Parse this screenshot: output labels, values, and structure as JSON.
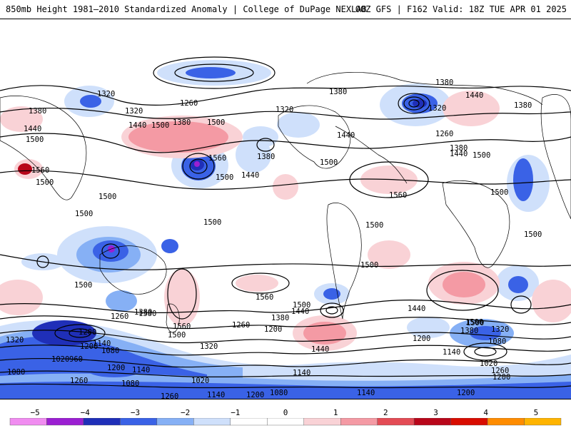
{
  "header": {
    "left_title": "850mb Height 1981–2010 Standardized Anomaly | College of DuPage NEXLAB",
    "right_title": "00Z GFS | F162 Valid: 18Z TUE APR 01 2025"
  },
  "colorbar": {
    "colors": [
      "#f08cf0",
      "#9b1fd2",
      "#1f2fb8",
      "#3a62e6",
      "#86b0f5",
      "#cfe0fb",
      "#ffffff",
      "#ffffff",
      "#f9d2d6",
      "#f49aa4",
      "#e34b55",
      "#b8061a",
      "#d80c00",
      "#ff8c00",
      "#ffb400"
    ],
    "ticks": [
      {
        "value": -5,
        "label": "−5"
      },
      {
        "value": -4,
        "label": "−4"
      },
      {
        "value": -3,
        "label": "−3"
      },
      {
        "value": -2,
        "label": "−2"
      },
      {
        "value": -1,
        "label": "−1"
      },
      {
        "value": 0,
        "label": "0"
      },
      {
        "value": 1,
        "label": "1"
      },
      {
        "value": 2,
        "label": "2"
      },
      {
        "value": 3,
        "label": "3"
      },
      {
        "value": 4,
        "label": "4"
      },
      {
        "value": 5,
        "label": "5"
      }
    ]
  },
  "contour_labels": [
    "1320",
    "1380",
    "1440",
    "1260",
    "1380",
    "1320",
    "1380",
    "1440",
    "1500",
    "1500",
    "1560",
    "1500",
    "1560",
    "1500",
    "1500",
    "1380",
    "1440",
    "1500",
    "1440",
    "1500",
    "1500",
    "1320",
    "1380",
    "1440",
    "1380",
    "1320",
    "1260",
    "1380",
    "1440",
    "1500",
    "1560",
    "1500",
    "1500",
    "1500",
    "1500",
    "1500",
    "1500",
    "1560",
    "1500",
    "1440",
    "1380",
    "1500",
    "1560",
    "1500",
    "1260",
    "1380",
    "1260",
    "1200",
    "1320",
    "1320",
    "1140",
    "1200",
    "1080",
    "1380",
    "1440",
    "1440",
    "1380",
    "1500",
    "1320",
    "1200",
    "1140",
    "1080",
    "1020",
    "1260",
    "1200",
    "1020",
    "960",
    "1080",
    "1140",
    "1200",
    "1140",
    "1200",
    "1080",
    "1020",
    "1260",
    "1140",
    "1200",
    "1080",
    "1140",
    "1260",
    "1200"
  ]
}
